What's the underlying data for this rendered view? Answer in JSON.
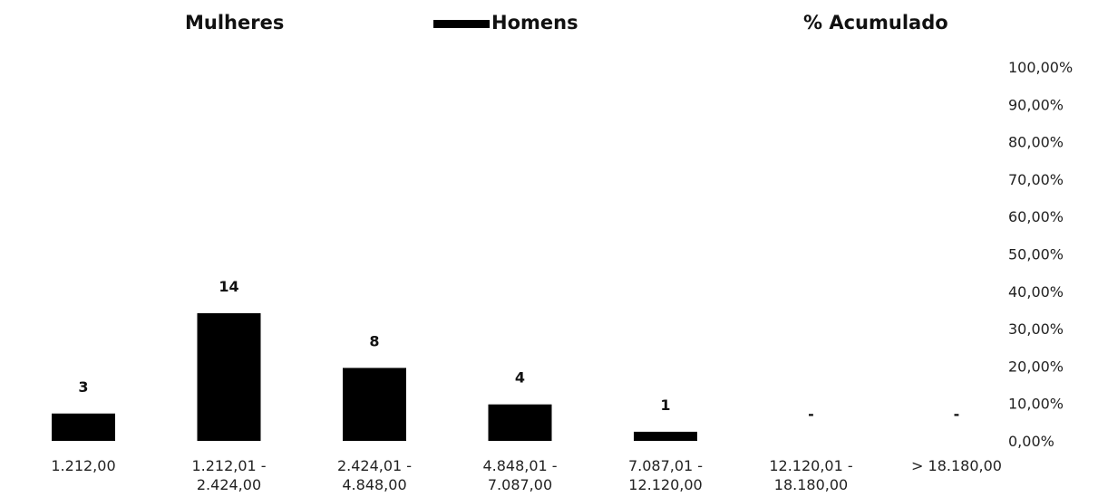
{
  "legend": {
    "series_women": "Mulheres",
    "series_men": "Homens",
    "series_cumulative": "% Acumulado"
  },
  "chart_data": {
    "type": "bar",
    "categories": [
      [
        "1.212,00"
      ],
      [
        "1.212,01 -",
        "2.424,00"
      ],
      [
        "2.424,01 -",
        "4.848,00"
      ],
      [
        "4.848,01 -",
        "7.087,00"
      ],
      [
        "7.087,01 -",
        "12.120,00"
      ],
      [
        "12.120,01 -",
        "18.180,00"
      ],
      [
        "> 18.180,00"
      ]
    ],
    "series": [
      {
        "name": "Homens",
        "values": [
          3,
          14,
          8,
          4,
          1,
          0,
          0
        ],
        "color": "#000000"
      }
    ],
    "data_labels": [
      "3",
      "14",
      "8",
      "4",
      "1",
      "-",
      "-"
    ],
    "y_ticks": [
      "0,00%",
      "10,00%",
      "20,00%",
      "30,00%",
      "40,00%",
      "50,00%",
      "60,00%",
      "70,00%",
      "80,00%",
      "90,00%",
      "100,00%"
    ],
    "ylim_count": [
      0,
      41
    ],
    "ylim_percent": [
      0,
      100
    ],
    "secondary_axis_side": "right",
    "grid": false,
    "legend_position": "top"
  }
}
